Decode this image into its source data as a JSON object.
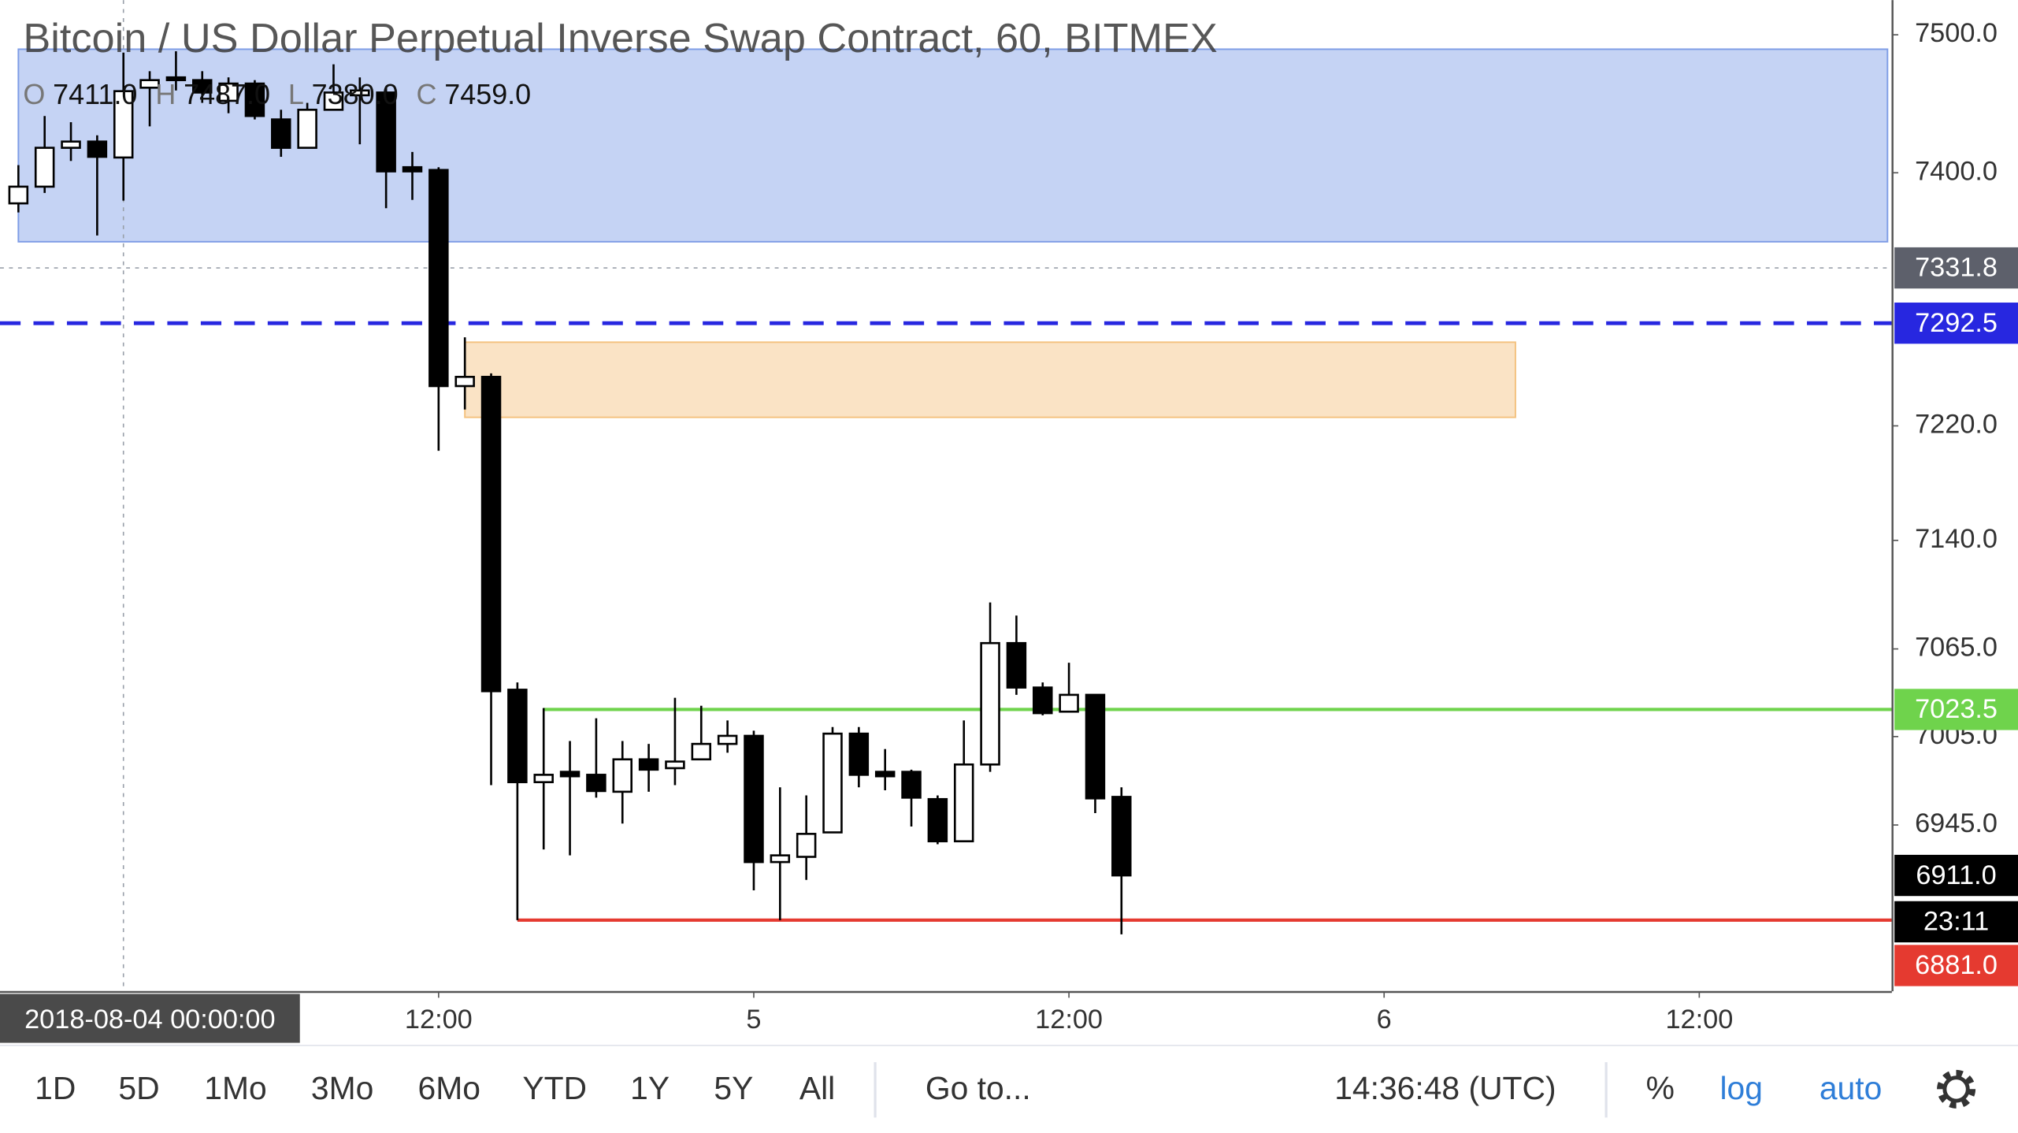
{
  "chart_data": {
    "type": "candlestick",
    "title": "Bitcoin / US Dollar Perpetual Inverse Swap Contract, 60, BITMEX",
    "ohlc_legend": [
      {
        "key": "O",
        "text": "7411.0"
      },
      {
        "key": "H",
        "text": "7487.0"
      },
      {
        "key": "L",
        "text": "7380.0"
      },
      {
        "key": "C",
        "text": "7459.0"
      }
    ],
    "x": [
      "2018-08-03 20:00",
      "2018-08-03 21:00",
      "2018-08-03 22:00",
      "2018-08-03 23:00",
      "2018-08-04 00:00",
      "2018-08-04 01:00",
      "2018-08-04 02:00",
      "2018-08-04 03:00",
      "2018-08-04 04:00",
      "2018-08-04 05:00",
      "2018-08-04 06:00",
      "2018-08-04 07:00",
      "2018-08-04 08:00",
      "2018-08-04 09:00",
      "2018-08-04 10:00",
      "2018-08-04 11:00",
      "2018-08-04 12:00",
      "2018-08-04 13:00",
      "2018-08-04 14:00",
      "2018-08-04 15:00",
      "2018-08-04 16:00",
      "2018-08-04 17:00",
      "2018-08-04 18:00",
      "2018-08-04 19:00",
      "2018-08-04 20:00",
      "2018-08-04 21:00",
      "2018-08-04 22:00",
      "2018-08-04 23:00",
      "2018-08-05 00:00",
      "2018-08-05 01:00",
      "2018-08-05 02:00",
      "2018-08-05 03:00",
      "2018-08-05 04:00",
      "2018-08-05 05:00",
      "2018-08-05 06:00",
      "2018-08-05 07:00",
      "2018-08-05 08:00",
      "2018-08-05 09:00",
      "2018-08-05 10:00",
      "2018-08-05 11:00",
      "2018-08-05 12:00",
      "2018-08-05 13:00",
      "2018-08-05 14:00"
    ],
    "open": [
      7378,
      7390,
      7418,
      7422.5,
      7411,
      7461.5,
      7469,
      7467,
      7452,
      7464.5,
      7438.5,
      7418,
      7445.5,
      7456,
      7458,
      7404,
      7402,
      7248,
      7254.5,
      7037,
      6974,
      6981,
      6979,
      6967.5,
      6989.5,
      6983.5,
      6989.5,
      7000,
      7005.5,
      6920,
      6923.5,
      6940,
      7007,
      6981,
      6981,
      6962.5,
      6934,
      6986,
      7069,
      7038.5,
      7022,
      7033.5,
      6964
    ],
    "high": [
      7405.5,
      7441,
      7436.5,
      7427,
      7487,
      7473.5,
      7488,
      7473.5,
      7469,
      7467,
      7445.5,
      7450.5,
      7478.5,
      7469,
      7461.5,
      7415,
      7404,
      7282.5,
      7257,
      7042,
      7024.5,
      7002,
      7017.5,
      7002,
      7000,
      7031.5,
      7026,
      7016,
      7009,
      6970.5,
      6965,
      7011.5,
      7011.5,
      6996.5,
      6982.5,
      6965,
      7016,
      7097,
      7088,
      7042,
      7055.5,
      7033.5,
      6970.5
    ],
    "low": [
      7371.5,
      7385.5,
      7408.5,
      7355,
      7380,
      7433.5,
      7459.5,
      7450.5,
      7443,
      7438.5,
      7411.5,
      7418,
      7445.5,
      7420.5,
      7374.5,
      7380.5,
      7202.5,
      7231.5,
      6972,
      6881,
      6928.5,
      6924.5,
      6963.5,
      6946,
      6967.5,
      6972,
      6989.5,
      6994,
      6901,
      6881,
      6908,
      6940,
      6970.5,
      6968.5,
      6944,
      6932,
      6934,
      6981,
      7033.5,
      7019.5,
      7022,
      6953,
      6871.5
    ],
    "close": [
      7390,
      7418,
      7422.5,
      7411.5,
      7459,
      7467,
      7467,
      7458,
      7464.5,
      7441,
      7418,
      7445.5,
      7458,
      7459.5,
      7401,
      7401,
      7248,
      7254.5,
      7036,
      6974,
      6979,
      6978,
      6968,
      6989.5,
      6982.5,
      6988,
      7000,
      7005.5,
      6920,
      6924.5,
      6939,
      7007,
      6979,
      6978,
      6963.5,
      6934,
      6986,
      7069,
      7038.5,
      7021,
      7033.5,
      6963,
      6911
    ],
    "up_color": "#ffffff",
    "down_color": "#000000",
    "border_color": "#000000",
    "xlim": [
      "2018-08-03 19:18",
      "2018-08-06 19:20"
    ],
    "xticks": [
      {
        "value": "2018-08-04 12:00",
        "label": "12:00"
      },
      {
        "value": "2018-08-05 00:00",
        "label": "5"
      },
      {
        "value": "2018-08-05 12:00",
        "label": "12:00"
      },
      {
        "value": "2018-08-06 00:00",
        "label": "6"
      },
      {
        "value": "2018-08-06 12:00",
        "label": "12:00"
      }
    ],
    "ylim": [
      6833.5,
      7525.4
    ],
    "yticks": [
      {
        "value": 7500,
        "label": "7500.0"
      },
      {
        "value": 7400,
        "label": "7400.0"
      },
      {
        "value": 7220,
        "label": "7220.0"
      },
      {
        "value": 7140,
        "label": "7140.0"
      },
      {
        "value": 7065,
        "label": "7065.0"
      },
      {
        "value": 7005,
        "label": "7005.0"
      },
      {
        "value": 6945,
        "label": "6945.0"
      }
    ],
    "log_scale": true,
    "grid": false,
    "zones": [
      {
        "x": [
          "2018-08-03 20:00",
          "2018-08-06 19:10"
        ],
        "y": [
          7350.5,
          7489.5
        ],
        "color": "#7f9de6"
      },
      {
        "x": [
          "2018-08-04 13:00",
          "2018-08-06 05:00"
        ],
        "y": [
          7226,
          7279
        ],
        "color": "#f4c27f"
      }
    ],
    "hlines": [
      {
        "value": 7292.5,
        "label": "7292.5",
        "color": "#2727e0",
        "style": "dashed"
      },
      {
        "value": 7023.5,
        "label": "7023.5",
        "color": "#6fd34c",
        "style": "solid",
        "start": "2018-08-04 16:00"
      },
      {
        "value": 6881,
        "label": "6881.0",
        "color": "#e53a30",
        "style": "solid",
        "start": "2018-08-04 15:00"
      }
    ],
    "crosshair": {
      "x": "2018-08-04 00:00:00",
      "y": {
        "value": 7331.8,
        "label": "7331.8"
      }
    },
    "last_price_label": "6911.0",
    "countdown": "23:11"
  },
  "toolbar": {
    "ranges": [
      "1D",
      "5D",
      "1Mo",
      "3Mo",
      "6Mo",
      "YTD",
      "1Y",
      "5Y",
      "All"
    ],
    "goto": "Go to...",
    "clock": "14:36:48 (UTC)",
    "percent": "%",
    "log": "log",
    "auto": "auto"
  }
}
